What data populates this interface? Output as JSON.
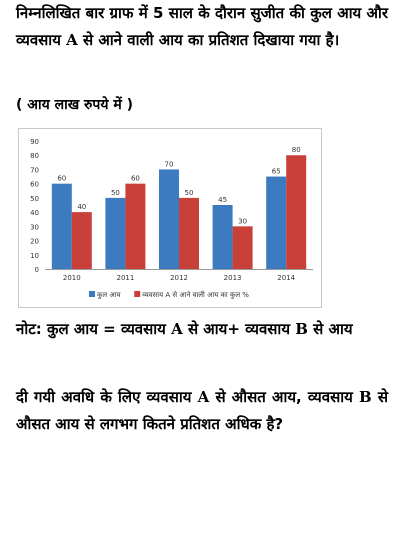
{
  "intro": "निम्नलिखित बार ग्राफ में 5 साल के दौरान सुजीत की कुल आय और व्यवसाय A से आने वाली आय का प्रतिशत दिखाया गया है।",
  "unit_note": "( आय लाख रुपये में )",
  "note": "नोट: कुल आय = व्यवसाय A से आय+ व्यवसाय B से आय",
  "question": "दी गयी अवधि के लिए व्यवसाय A से औसत आय, व्यवसाय B से औसत आय से लगभग कितने प्रतिशत अधिक है?",
  "colors": {
    "total_income": "#3c7bc0",
    "business_a_pct": "#c9403a"
  },
  "chart_data": {
    "type": "bar",
    "categories": [
      "2010",
      "2011",
      "2012",
      "2013",
      "2014"
    ],
    "series": [
      {
        "name": "कुल आय",
        "values": [
          60,
          50,
          70,
          45,
          65
        ]
      },
      {
        "name": "व्यवसाय A से आने वाली आय का कुल %",
        "values": [
          40,
          60,
          50,
          30,
          80
        ]
      }
    ],
    "ylim": [
      0,
      90
    ],
    "yticks": [
      0,
      10,
      20,
      30,
      40,
      50,
      60,
      70,
      80,
      90
    ],
    "grid": false,
    "legend_position": "bottom",
    "data_labels": true
  }
}
